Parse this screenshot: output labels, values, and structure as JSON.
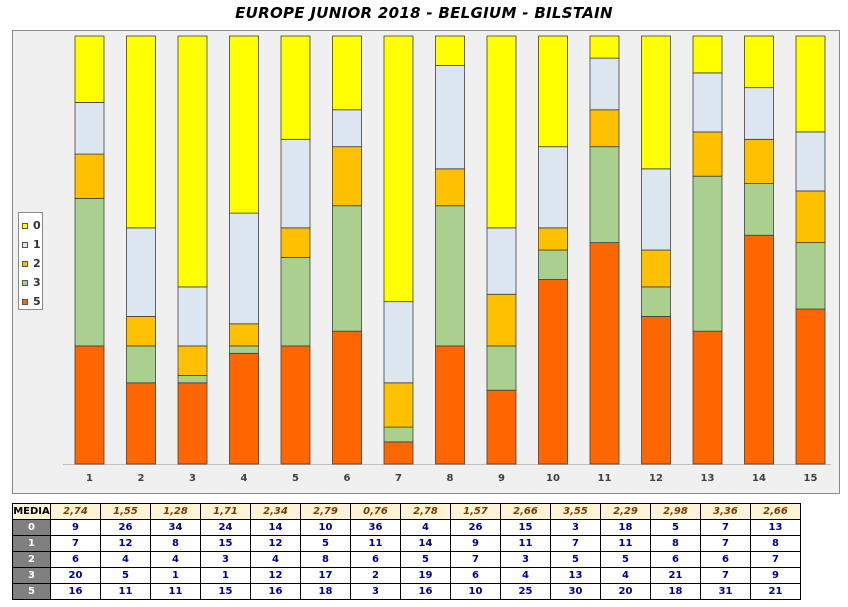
{
  "title": "EUROPE JUNIOR 2018 - BELGIUM - BILSTAIN",
  "colors": {
    "0": "#ffff00",
    "1": "#dce6f1",
    "2": "#ffc000",
    "3": "#a9d08e",
    "5": "#ff6600"
  },
  "legend": [
    {
      "key": "0",
      "label": "0"
    },
    {
      "key": "1",
      "label": "1"
    },
    {
      "key": "2",
      "label": "2"
    },
    {
      "key": "3",
      "label": "3"
    },
    {
      "key": "5",
      "label": "5"
    }
  ],
  "chart_data": {
    "type": "bar",
    "stacked": true,
    "percent_stacked": true,
    "categories": [
      "1",
      "2",
      "3",
      "4",
      "5",
      "6",
      "7",
      "8",
      "9",
      "10",
      "11",
      "12",
      "13",
      "14",
      "15"
    ],
    "series": [
      {
        "name": "5",
        "values": [
          16,
          11,
          11,
          15,
          16,
          18,
          3,
          16,
          10,
          25,
          30,
          20,
          18,
          31,
          21
        ]
      },
      {
        "name": "3",
        "values": [
          20,
          5,
          1,
          1,
          12,
          17,
          2,
          19,
          6,
          4,
          13,
          4,
          21,
          7,
          9
        ]
      },
      {
        "name": "2",
        "values": [
          6,
          4,
          4,
          3,
          4,
          8,
          6,
          5,
          7,
          3,
          5,
          5,
          6,
          6,
          7
        ]
      },
      {
        "name": "1",
        "values": [
          7,
          12,
          8,
          15,
          12,
          5,
          11,
          14,
          9,
          11,
          7,
          11,
          8,
          7,
          8
        ]
      },
      {
        "name": "0",
        "values": [
          9,
          26,
          34,
          24,
          14,
          10,
          36,
          4,
          26,
          15,
          3,
          18,
          5,
          7,
          13
        ]
      }
    ],
    "legend_position": "left"
  },
  "table": {
    "rows": [
      {
        "label": "MEDIA",
        "values": [
          "2,74",
          "1,55",
          "1,28",
          "1,71",
          "2,34",
          "2,79",
          "0,76",
          "2,78",
          "1,57",
          "2,66",
          "3,55",
          "2,29",
          "2,98",
          "3,36",
          "2,66"
        ]
      },
      {
        "label": "0",
        "values": [
          "9",
          "26",
          "34",
          "24",
          "14",
          "10",
          "36",
          "4",
          "26",
          "15",
          "3",
          "18",
          "5",
          "7",
          "13"
        ]
      },
      {
        "label": "1",
        "values": [
          "7",
          "12",
          "8",
          "15",
          "12",
          "5",
          "11",
          "14",
          "9",
          "11",
          "7",
          "11",
          "8",
          "7",
          "8"
        ]
      },
      {
        "label": "2",
        "values": [
          "6",
          "4",
          "4",
          "3",
          "4",
          "8",
          "6",
          "5",
          "7",
          "3",
          "5",
          "5",
          "6",
          "6",
          "7"
        ]
      },
      {
        "label": "3",
        "values": [
          "20",
          "5",
          "1",
          "1",
          "12",
          "17",
          "2",
          "19",
          "6",
          "4",
          "13",
          "4",
          "21",
          "7",
          "9"
        ]
      },
      {
        "label": "5",
        "values": [
          "16",
          "11",
          "11",
          "15",
          "16",
          "18",
          "3",
          "16",
          "10",
          "25",
          "30",
          "20",
          "18",
          "31",
          "21"
        ]
      }
    ]
  }
}
